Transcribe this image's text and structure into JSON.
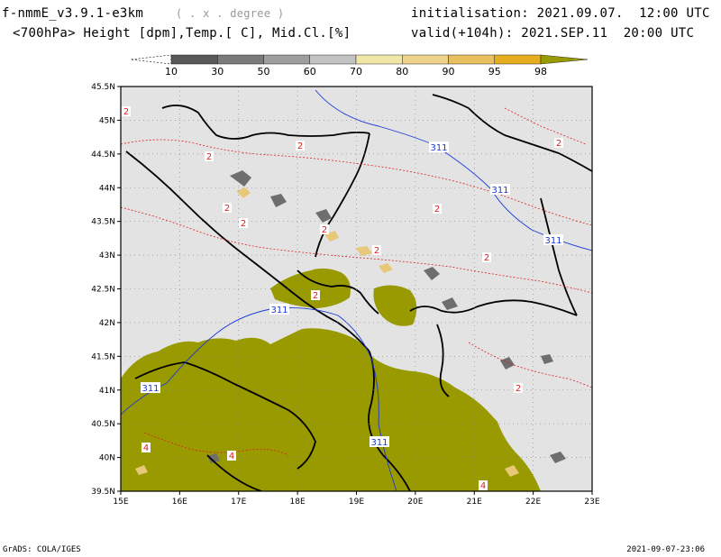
{
  "header": {
    "model": "f-nmmE_v3.9.1-e3km",
    "unit_note": "( . x . degree )",
    "subtitle": "<700hPa> Height [dpm],Temp.[ C], Mid.Cl.[%]",
    "init_label": "initialisation:",
    "init_value": "2021.09.07.  12:00 UTC",
    "valid_label": "valid(+104h):",
    "valid_value": "2021.SEP.11  20:00 UTC"
  },
  "footer": {
    "left": "GrADS: COLA/IGES",
    "right": "2021-09-07-23:06"
  },
  "colors": {
    "land_gray": "#e3e3e3",
    "olive": "#999900",
    "border": "#000000",
    "height_contour": "#1a3ad6",
    "temp_contour": "#e02020"
  },
  "chart_data": {
    "type": "heatmap",
    "xlim": [
      15,
      23
    ],
    "ylim": [
      39.5,
      45.5
    ],
    "x_ticks": [
      "15E",
      "16E",
      "17E",
      "18E",
      "19E",
      "20E",
      "21E",
      "22E",
      "23E"
    ],
    "y_ticks": [
      "39.5N",
      "40N",
      "40.5N",
      "41N",
      "41.5N",
      "42N",
      "42.5N",
      "43N",
      "43.5N",
      "44N",
      "44.5N",
      "45N",
      "45.5N"
    ],
    "colorbar": {
      "levels": [
        "10",
        "30",
        "50",
        "60",
        "70",
        "80",
        "90",
        "95",
        "98"
      ],
      "colors": [
        "#ffffff",
        "#595959",
        "#7a7a7a",
        "#9e9e9e",
        "#c2c2c2",
        "#f0e6a6",
        "#ecd28a",
        "#e9c060",
        "#e6ad20",
        "#999900"
      ]
    },
    "height_contour_labels": [
      "311",
      "311",
      "311",
      "311",
      "311",
      "311"
    ],
    "temp_contour_labels": [
      "2",
      "2",
      "2",
      "2",
      "2",
      "2",
      "2",
      "2",
      "2",
      "2",
      "2",
      "2",
      "4",
      "4",
      "4"
    ],
    "grid": true
  }
}
